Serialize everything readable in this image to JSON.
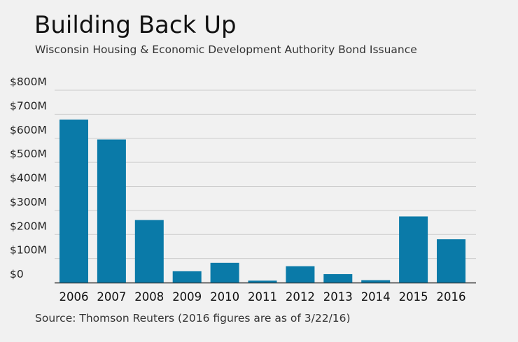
{
  "title": "Building Back Up",
  "subtitle": "Wisconsin Housing & Economic Development Authority Bond Issuance",
  "source": "Source: Thomson Reuters (2016 figures are as of 3/22/16)",
  "colors": {
    "bar": "#0a7aa8",
    "grid": "#cccccc",
    "axis": "#333333",
    "background": "#f1f1f1"
  },
  "chart_data": {
    "type": "bar",
    "title": "Building Back Up",
    "subtitle": "Wisconsin Housing & Economic Development Authority Bond Issuance",
    "xlabel": "",
    "ylabel": "",
    "categories": [
      "2006",
      "2007",
      "2008",
      "2009",
      "2010",
      "2011",
      "2012",
      "2013",
      "2014",
      "2015",
      "2016"
    ],
    "values": [
      678,
      595,
      260,
      47,
      82,
      8,
      68,
      35,
      10,
      275,
      180
    ],
    "ylim": [
      0,
      800
    ],
    "yticks": [
      0,
      100,
      200,
      300,
      400,
      500,
      600,
      700,
      800
    ],
    "ytick_labels": [
      "$0",
      "$100M",
      "$200M",
      "$300M",
      "$400M",
      "$500M",
      "$600M",
      "$700M",
      "$800M"
    ],
    "grid": true,
    "legend": "none"
  }
}
